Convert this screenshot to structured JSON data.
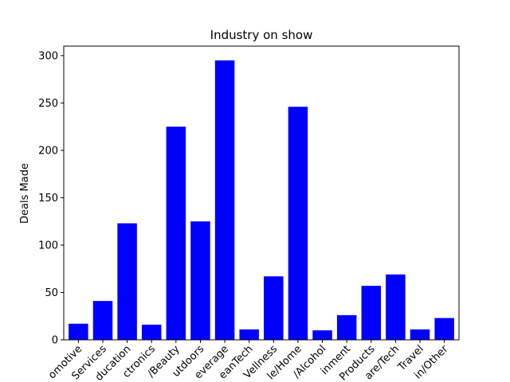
{
  "chart_data": {
    "type": "bar",
    "title": "Industry on show",
    "xlabel": "",
    "ylabel": "Deals Made",
    "ylim": [
      0,
      310
    ],
    "yticks": [
      0,
      50,
      100,
      150,
      200,
      250,
      300
    ],
    "bar_color": "#0000ff",
    "categories": [
      "Automotive",
      "Business Services",
      "Children/Education",
      "Electronics",
      "Fashion/Beauty",
      "Fitness/Sports/Outdoors",
      "Food and Beverage",
      "Green/CleanTech",
      "Health/Wellness",
      "Lifestyle/Home",
      "Liquor/Alcohol",
      "Media/Entertainment",
      "Pet Products",
      "Software/Tech",
      "Travel",
      "Uncertain/Other"
    ],
    "tick_labels": [
      "omotive",
      "Services",
      "ducation",
      "ctronics",
      "/Beauty",
      "utdoors",
      "everage",
      "eanTech",
      "Vellness",
      "le/Home",
      "/Alcohol",
      "inment",
      "Products",
      "are/Tech",
      "Travel",
      "in/Other"
    ],
    "values": [
      17,
      41,
      123,
      16,
      225,
      125,
      295,
      11,
      67,
      246,
      10,
      26,
      57,
      69,
      11,
      23
    ]
  }
}
